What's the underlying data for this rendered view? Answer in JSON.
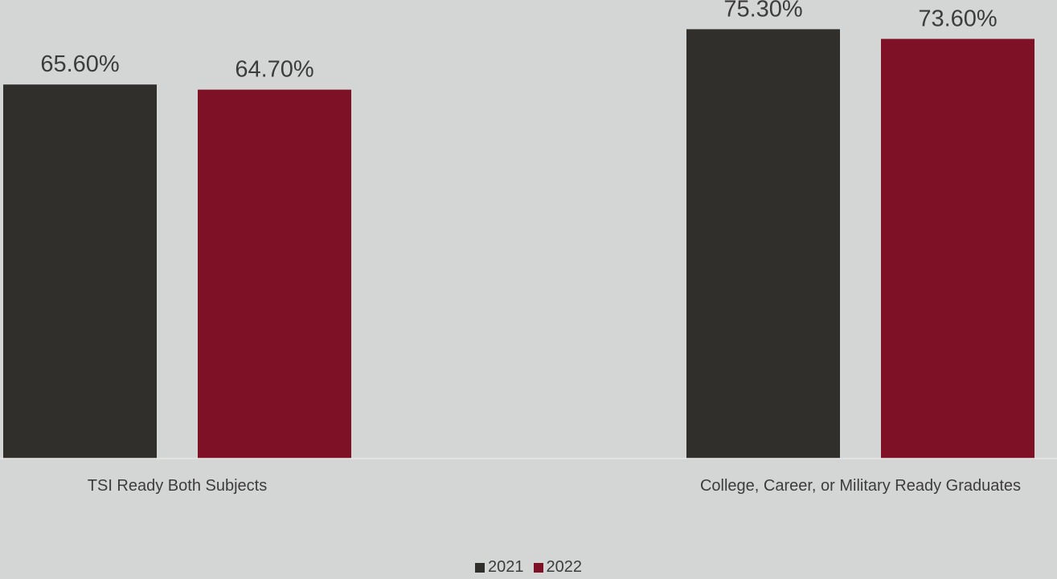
{
  "background_color": "#d4d6d5",
  "chart_data": {
    "type": "bar",
    "categories": [
      "TSI Ready Both Subjects",
      "College, Career, or Military Ready Graduates"
    ],
    "series": [
      {
        "name": "2021",
        "values": [
          65.6,
          75.3
        ],
        "labels": [
          "65.60%",
          "75.30%"
        ],
        "color": "#302f2b"
      },
      {
        "name": "2022",
        "values": [
          64.7,
          73.6
        ],
        "labels": [
          "64.70%",
          "73.60%"
        ],
        "color": "#7f1126"
      }
    ],
    "title": "",
    "xlabel": "",
    "ylabel": "",
    "ylim": [
      0,
      100
    ],
    "grid": false,
    "legend_position": "bottom"
  }
}
